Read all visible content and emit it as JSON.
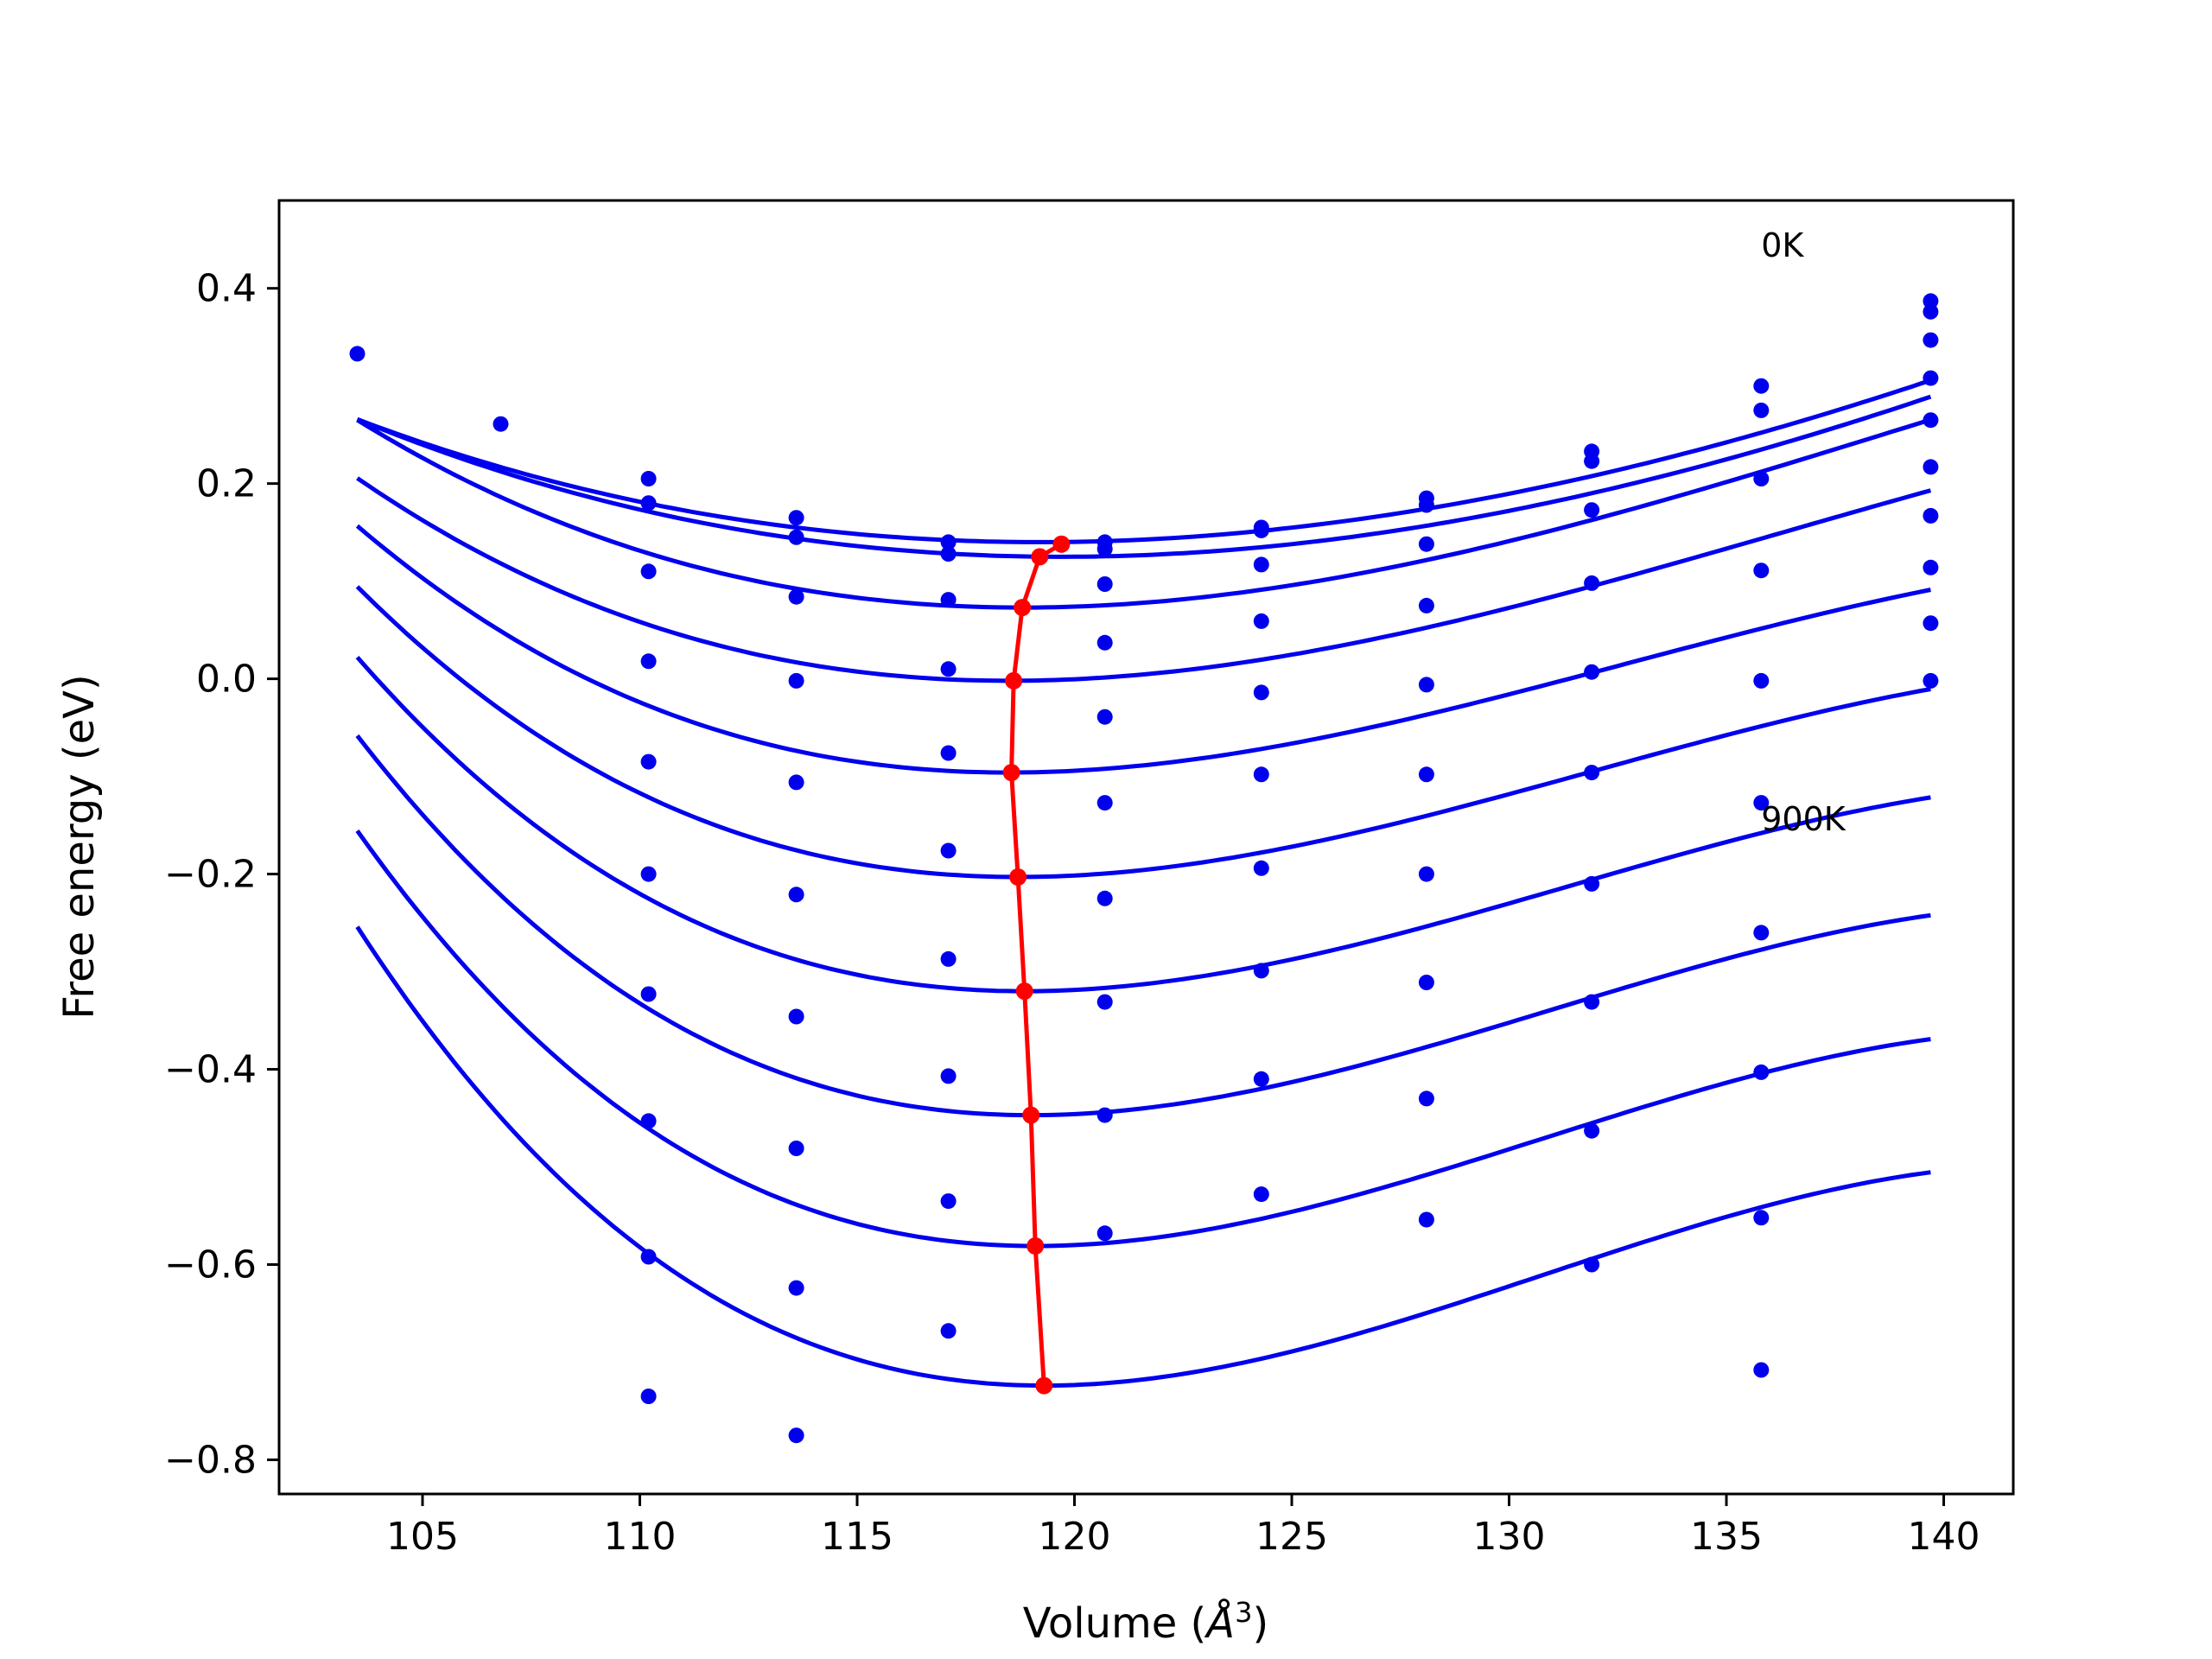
{
  "chart_data": {
    "type": "line",
    "title": "",
    "xlabel_main": "Volume (",
    "xlabel_unit": "Å",
    "xlabel_exp": "3",
    "xlabel_close": ")",
    "ylabel": "Free energy (eV)",
    "xlim": [
      101.7,
      141.6
    ],
    "ylim": [
      -0.835,
      0.49
    ],
    "xticks": [
      105,
      110,
      115,
      120,
      125,
      130,
      135,
      140
    ],
    "yticks": [
      0.4,
      0.2,
      0.0,
      -0.2,
      -0.4,
      -0.6,
      -0.8
    ],
    "ytick_labels": [
      "0.4",
      "0.2",
      "0.0",
      "−0.2",
      "−0.4",
      "−0.6",
      "−0.8"
    ],
    "grid": false,
    "legend": "none",
    "colors": {
      "fit": "#0000ee",
      "points": "#0000ee",
      "minimum": "#ff0000"
    },
    "annotations": [
      {
        "text": "0K",
        "x": 135.8,
        "y": 0.445
      },
      {
        "text": "900K",
        "x": 135.8,
        "y": -0.143
      }
    ],
    "fits": [
      {
        "V0": 119.2,
        "F0": 0.14,
        "a": 0.00046,
        "b": 3.2e-06,
        "xstart": 103.5
      },
      {
        "V0": 119.7,
        "F0": 0.125,
        "a": 0.00048,
        "b": 3.5e-06,
        "xstart": 103.5
      },
      {
        "V0": 118.8,
        "F0": 0.073,
        "a": 0.00066,
        "b": 1.05e-05,
        "xstart": 103.5
      },
      {
        "V0": 118.5,
        "F0": -0.002,
        "a": 0.00072,
        "b": 1.35e-05,
        "xstart": 103.5
      },
      {
        "V0": 118.5,
        "F0": -0.096,
        "a": 0.00083,
        "b": 1.95e-05,
        "xstart": 103.5
      },
      {
        "V0": 118.7,
        "F0": -0.203,
        "a": 0.00093,
        "b": 2.35e-05,
        "xstart": 103.5
      },
      {
        "V0": 118.85,
        "F0": -0.32,
        "a": 0.00103,
        "b": 2.75e-05,
        "xstart": 103.5
      },
      {
        "V0": 119.0,
        "F0": -0.447,
        "a": 0.00113,
        "b": 3.15e-05,
        "xstart": 103.5
      },
      {
        "V0": 119.1,
        "F0": -0.581,
        "a": 0.00121,
        "b": 3.45e-05,
        "xstart": 103.5
      },
      {
        "V0": 119.3,
        "F0": -0.724,
        "a": 0.00129,
        "b": 3.75e-05,
        "xstart": 103.5
      }
    ],
    "points": [
      {
        "x": 103.5,
        "y": [
          0.333
        ]
      },
      {
        "x": 106.8,
        "y": [
          0.261
        ]
      },
      {
        "x": 110.2,
        "y": [
          0.205,
          0.18,
          0.11,
          0.018,
          -0.085,
          -0.2,
          -0.323,
          -0.453,
          -0.592,
          -0.735
        ]
      },
      {
        "x": 113.6,
        "y": [
          0.165,
          0.145,
          0.084,
          -0.002,
          -0.106,
          -0.221,
          -0.346,
          -0.481,
          -0.624,
          -0.775
        ]
      },
      {
        "x": 117.1,
        "y": [
          0.14,
          0.128,
          0.081,
          0.01,
          -0.076,
          -0.176,
          -0.287,
          -0.407,
          -0.535,
          -0.668
        ]
      },
      {
        "x": 120.7,
        "y": [
          0.14,
          0.133,
          0.097,
          0.037,
          -0.039,
          -0.127,
          -0.225,
          -0.331,
          -0.447,
          -0.568
        ]
      },
      {
        "x": 124.3,
        "y": [
          0.155,
          0.152,
          0.117,
          0.059,
          -0.014,
          -0.098,
          -0.194,
          -0.299,
          -0.41,
          -0.528
        ]
      },
      {
        "x": 128.1,
        "y": [
          0.185,
          0.178,
          0.138,
          0.075,
          -0.006,
          -0.098,
          -0.2,
          -0.311,
          -0.43,
          -0.554
        ]
      },
      {
        "x": 131.9,
        "y": [
          0.233,
          0.223,
          0.173,
          0.098,
          0.007,
          -0.096,
          -0.21,
          -0.331,
          -0.463,
          -0.6
        ]
      },
      {
        "x": 135.8,
        "y": [
          0.3,
          0.275,
          0.205,
          0.111,
          -0.002,
          -0.127,
          -0.26,
          -0.403,
          -0.552,
          -0.708
        ]
      },
      {
        "x": 139.7,
        "y": [
          0.387,
          0.376,
          0.347,
          0.308,
          0.265,
          0.217,
          0.167,
          0.114,
          0.057,
          -0.002
        ]
      }
    ],
    "minimum_curve": {
      "x": [
        119.7,
        119.2,
        118.8,
        118.6,
        118.55,
        118.7,
        118.85,
        119.0,
        119.1,
        119.3
      ],
      "y": [
        0.138,
        0.125,
        0.073,
        -0.002,
        -0.096,
        -0.203,
        -0.32,
        -0.447,
        -0.581,
        -0.724
      ]
    }
  }
}
